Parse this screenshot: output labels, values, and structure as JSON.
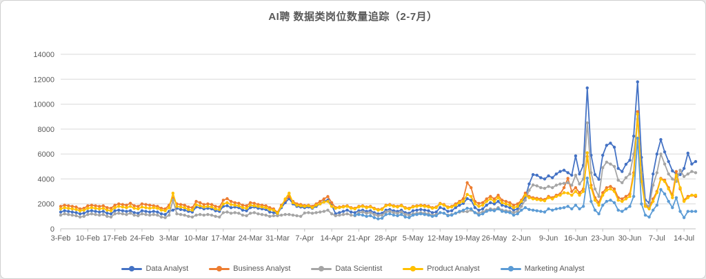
{
  "window": {
    "background": "#ffffff",
    "border_color": "#cfcfcf"
  },
  "chart_data": {
    "type": "line",
    "title": "AI聘 数据类岗位数量追踪（2-7月）",
    "xlabel": "",
    "ylabel": "",
    "ylim": [
      0,
      14000
    ],
    "y_ticks": [
      0,
      2000,
      4000,
      6000,
      8000,
      10000,
      12000,
      14000
    ],
    "grid": "horizontal",
    "legend_position": "bottom",
    "points_per_week": 7,
    "x_tick_labels": [
      "3-Feb",
      "10-Feb",
      "17-Feb",
      "24-Feb",
      "3-Mar",
      "10-Mar",
      "17-Mar",
      "24-Mar",
      "31-Mar",
      "7-Apr",
      "14-Apr",
      "21-Apr",
      "28-Apr",
      "5-May",
      "12-May",
      "19-May",
      "26-May",
      "2-Jun",
      "9-Jun",
      "16-Jun",
      "23-Jun",
      "30-Jun",
      "7-Jul",
      "14-Jul"
    ],
    "axis_text_color": "#595959",
    "gridline_color": "#d9d9d9",
    "axis_line_color": "#bfbfbf",
    "series": [
      {
        "name": "Data Analyst",
        "color": "#4472C4",
        "start_index": 0,
        "values": [
          1350,
          1450,
          1400,
          1350,
          1300,
          1200,
          1250,
          1400,
          1450,
          1400,
          1350,
          1400,
          1250,
          1200,
          1450,
          1500,
          1450,
          1400,
          1450,
          1300,
          1250,
          1450,
          1400,
          1350,
          1400,
          1350,
          1200,
          1150,
          1400,
          1500,
          1650,
          1550,
          1500,
          1400,
          1350,
          1750,
          1700,
          1600,
          1650,
          1600,
          1450,
          1400,
          1800,
          1850,
          1700,
          1750,
          1700,
          1500,
          1450,
          1700,
          1750,
          1650,
          1600,
          1550,
          1350,
          1300,
          1200,
          1700,
          2100,
          2420,
          2000,
          1800,
          1750,
          1700,
          1750,
          1650,
          1800,
          2000,
          2200,
          2310,
          1900,
          1210,
          1300,
          1400,
          1500,
          1350,
          1300,
          1450,
          1500,
          1400,
          1450,
          1300,
          1200,
          1250,
          1500,
          1550,
          1450,
          1400,
          1500,
          1300,
          1250,
          1450,
          1500,
          1550,
          1500,
          1450,
          1300,
          1350,
          1710,
          1600,
          1400,
          1450,
          1700,
          1900,
          2040,
          2420,
          2300,
          1700,
          1490,
          1600,
          1900,
          2100,
          2000,
          2200,
          1900,
          1800,
          1700,
          1500,
          1600,
          2100,
          2500,
          3600,
          4350,
          4300,
          4100,
          4000,
          4250,
          4100,
          4400,
          4600,
          4700,
          4500,
          4300,
          5850,
          4400,
          5100,
          11300,
          5900,
          4350,
          3970,
          5900,
          6700,
          6870,
          6550,
          4850,
          4600,
          5180,
          5500,
          7440,
          11790,
          5730,
          2310,
          2100,
          4400,
          6000,
          7160,
          6170,
          5400,
          4650,
          4400,
          4350,
          4850,
          6070,
          5200,
          5400
        ]
      },
      {
        "name": "Business Analyst",
        "color": "#ED7D31",
        "start_index": 0,
        "values": [
          1800,
          1900,
          1850,
          1800,
          1750,
          1600,
          1650,
          1850,
          1900,
          1850,
          1800,
          1850,
          1700,
          1650,
          1900,
          2000,
          1950,
          1900,
          2050,
          1850,
          1800,
          2000,
          1950,
          1900,
          1850,
          1800,
          1650,
          1600,
          1900,
          2480,
          2000,
          1950,
          1900,
          1750,
          1700,
          2200,
          2100,
          1950,
          2000,
          1950,
          1800,
          1750,
          2300,
          2420,
          2200,
          2100,
          2050,
          1900,
          1850,
          2100,
          2050,
          1950,
          1900,
          1850,
          1700,
          1600,
          1320,
          1900,
          2300,
          2590,
          2200,
          2000,
          1950,
          1870,
          1900,
          1800,
          2000,
          2200,
          2400,
          2590,
          2100,
          1710,
          1750,
          1800,
          1850,
          1700,
          1650,
          1800,
          1850,
          1750,
          1800,
          1650,
          1550,
          1600,
          1900,
          1950,
          1850,
          1800,
          1900,
          1700,
          1650,
          1800,
          1850,
          1900,
          1870,
          1820,
          1700,
          1750,
          2040,
          1950,
          1750,
          1800,
          2000,
          2200,
          2420,
          3700,
          3300,
          2200,
          2040,
          2100,
          2400,
          2600,
          2400,
          2700,
          2300,
          2200,
          2100,
          1900,
          2000,
          2300,
          2870,
          2600,
          2500,
          2450,
          2400,
          2350,
          2600,
          2500,
          2700,
          2800,
          3300,
          4050,
          3000,
          3300,
          2900,
          3200,
          5800,
          3500,
          2500,
          2100,
          2900,
          3300,
          3400,
          3200,
          2500,
          2400,
          2600,
          2800,
          4500,
          9400,
          4000,
          1900,
          1700,
          2400,
          3000,
          4050,
          3900,
          3300,
          2700,
          4600,
          3200,
          2300,
          2600,
          2700,
          2600
        ]
      },
      {
        "name": "Data Scientist",
        "color": "#A5A5A5",
        "start_index": 0,
        "values": [
          1100,
          1200,
          1150,
          1100,
          1050,
          950,
          1000,
          1150,
          1200,
          1150,
          1100,
          1150,
          1000,
          950,
          1200,
          1250,
          1200,
          1150,
          1250,
          1100,
          1050,
          1200,
          1150,
          1100,
          1150,
          1100,
          950,
          900,
          1100,
          2310,
          1200,
          1150,
          1100,
          1000,
          950,
          1100,
          1150,
          1100,
          1150,
          1100,
          1000,
          950,
          1300,
          1350,
          1250,
          1300,
          1250,
          1100,
          1050,
          1250,
          1300,
          1200,
          1150,
          1100,
          1000,
          1050,
          1050,
          1100,
          1150,
          1150,
          1100,
          1050,
          1000,
          1270,
          1300,
          1250,
          1300,
          1350,
          1400,
          1500,
          1200,
          1050,
          1100,
          1150,
          1200,
          1100,
          1050,
          1300,
          1350,
          1250,
          1300,
          1150,
          1050,
          1100,
          1350,
          1400,
          1300,
          1250,
          1350,
          1150,
          1100,
          1200,
          1250,
          1300,
          1250,
          1200,
          1100,
          1150,
          1300,
          1250,
          1100,
          1150,
          1250,
          1350,
          1400,
          1380,
          1500,
          1300,
          1250,
          1350,
          1500,
          1600,
          1550,
          1700,
          1500,
          1450,
          1400,
          1300,
          1400,
          1800,
          2300,
          3100,
          3520,
          3450,
          3300,
          3250,
          3400,
          3300,
          3500,
          3600,
          3650,
          3700,
          3500,
          4300,
          3600,
          4000,
          8500,
          4500,
          3200,
          2600,
          4900,
          5350,
          5200,
          5000,
          3900,
          3700,
          4100,
          4400,
          6000,
          8800,
          4500,
          2000,
          1800,
          3500,
          4500,
          6000,
          5200,
          4400,
          4000,
          3800,
          4700,
          4200,
          4400,
          4600,
          4500
        ]
      },
      {
        "name": "Product Analyst",
        "color": "#FFC000",
        "start_index": 0,
        "values": [
          1600,
          1700,
          1650,
          1600,
          1550,
          1450,
          1500,
          1650,
          1700,
          1650,
          1600,
          1650,
          1500,
          1450,
          1700,
          1800,
          1750,
          1700,
          1800,
          1650,
          1600,
          1750,
          1700,
          1650,
          1700,
          1650,
          1500,
          1450,
          1700,
          2860,
          1800,
          1750,
          1700,
          1550,
          1500,
          1930,
          1850,
          1750,
          1800,
          1750,
          1600,
          1550,
          2000,
          2100,
          1950,
          1900,
          1850,
          1700,
          1650,
          1900,
          1850,
          1800,
          1750,
          1700,
          1550,
          1500,
          1250,
          1800,
          2400,
          2860,
          2100,
          1900,
          1850,
          1800,
          1850,
          1700,
          1900,
          2000,
          2150,
          2200,
          1800,
          1650,
          1700,
          1750,
          1800,
          1650,
          1600,
          1750,
          1800,
          1700,
          1750,
          1600,
          1500,
          1550,
          1850,
          1900,
          1800,
          1750,
          1850,
          1650,
          1600,
          1750,
          1800,
          1850,
          1800,
          1750,
          1650,
          1700,
          2000,
          1900,
          1700,
          1750,
          1900,
          2100,
          2200,
          2760,
          2600,
          2000,
          1800,
          1900,
          2200,
          2400,
          2200,
          2500,
          2100,
          2000,
          1900,
          1700,
          1800,
          2200,
          2700,
          2500,
          2400,
          2350,
          2300,
          2250,
          2500,
          2400,
          2600,
          2700,
          2900,
          2860,
          2700,
          3000,
          2700,
          3000,
          6100,
          3300,
          2300,
          1900,
          2700,
          3100,
          3200,
          3000,
          2300,
          2200,
          2400,
          2600,
          4300,
          9200,
          3800,
          1800,
          1600,
          2200,
          2900,
          4000,
          3800,
          3200,
          2500,
          4300,
          3300,
          2200,
          2500,
          2700,
          2700
        ]
      },
      {
        "name": "Marketing Analyst",
        "color": "#5B9BD5",
        "start_index": 76,
        "values": [
          1100,
          1150,
          1100,
          1000,
          1050,
          900,
          800,
          850,
          1150,
          1200,
          1100,
          1050,
          1150,
          950,
          900,
          1100,
          1150,
          1200,
          1150,
          1100,
          1000,
          1050,
          1300,
          1250,
          1050,
          1100,
          1250,
          1400,
          1500,
          1650,
          1600,
          1300,
          1100,
          1200,
          1400,
          1500,
          1450,
          1600,
          1400,
          1350,
          1300,
          1100,
          1200,
          1500,
          1700,
          1550,
          1500,
          1450,
          1400,
          1350,
          1600,
          1500,
          1600,
          1650,
          1700,
          1800,
          1600,
          1900,
          1600,
          1800,
          4070,
          2200,
          1500,
          1200,
          1900,
          2200,
          2300,
          2100,
          1500,
          1400,
          1600,
          1800,
          2600,
          7270,
          2000,
          1100,
          950,
          1500,
          1900,
          3150,
          2800,
          2200,
          1700,
          2500,
          1400,
          900,
          1400,
          1400,
          1400
        ]
      }
    ]
  }
}
